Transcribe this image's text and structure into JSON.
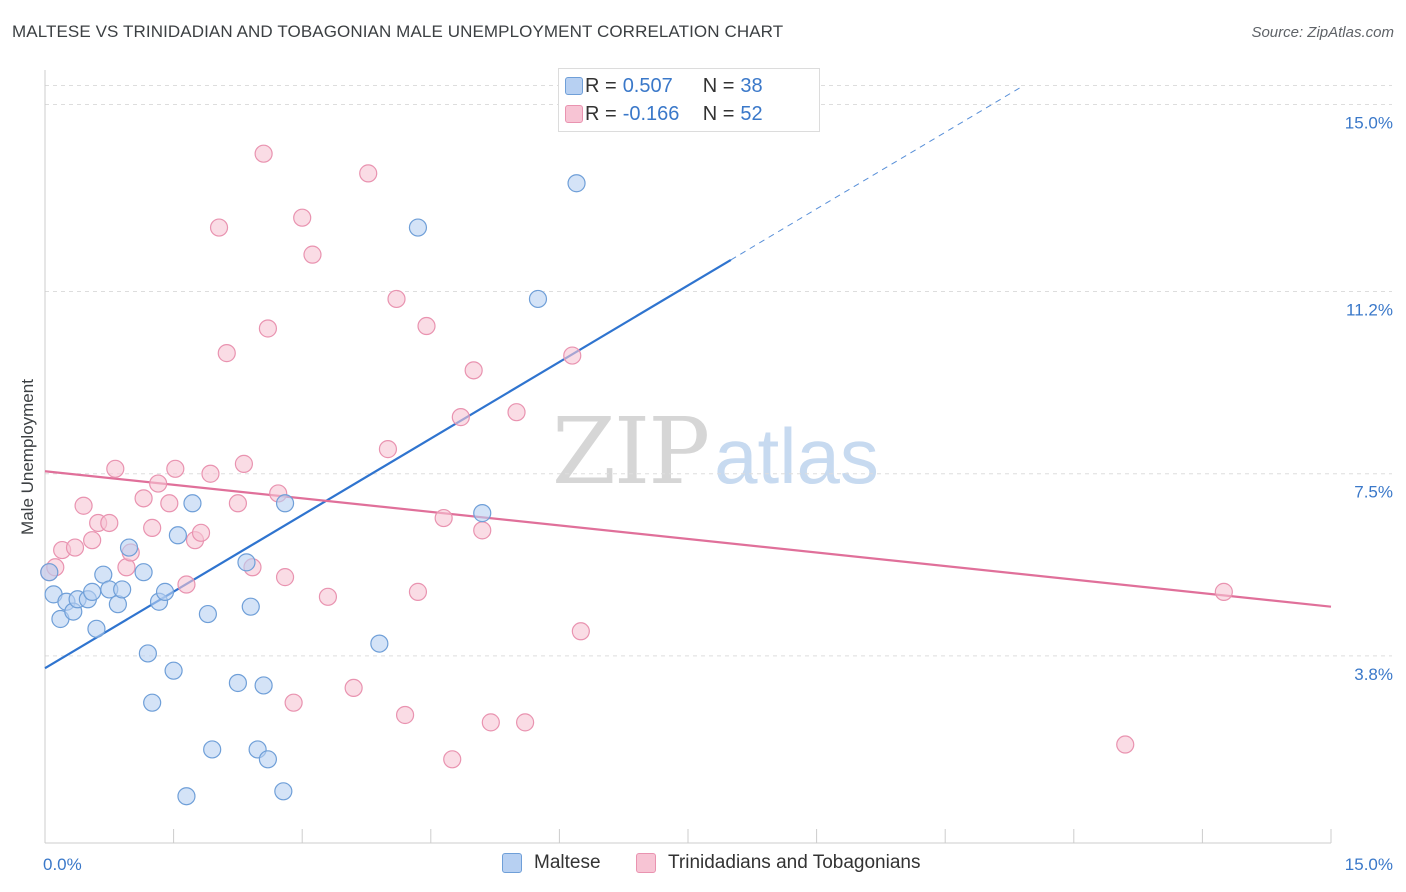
{
  "header": {
    "title": "MALTESE VS TRINIDADIAN AND TOBAGONIAN MALE UNEMPLOYMENT CORRELATION CHART",
    "source": "Source: ZipAtlas.com"
  },
  "watermark": {
    "zip": "ZIP",
    "atlas": "atlas"
  },
  "stats": {
    "maltese": {
      "r_label": "R =",
      "r_value": "0.507",
      "n_label": "N =",
      "n_value": "38"
    },
    "trinidadian": {
      "r_label": "R =",
      "r_value": "-0.166",
      "n_label": "N =",
      "n_value": "52"
    }
  },
  "legend": {
    "maltese": "Maltese",
    "trinidadian": "Trinidadians and Tobagonians"
  },
  "colors": {
    "maltese_fill": "#b7d0f2",
    "maltese_stroke": "#6f9fd8",
    "maltese_line": "#2f74cf",
    "trinidadian_fill": "#f7c4d4",
    "trinidadian_stroke": "#e993b0",
    "trinidadian_line": "#e0709a",
    "axis_label": "#3a78c9",
    "grid": "#dddddd"
  },
  "chart_data": {
    "type": "scatter",
    "title": "MALTESE VS TRINIDADIAN AND TOBAGONIAN MALE UNEMPLOYMENT CORRELATION CHART",
    "xlabel": "",
    "ylabel": "Male Unemployment",
    "xlim": [
      0,
      15
    ],
    "ylim": [
      0,
      15.7
    ],
    "x_tick_labels": [
      {
        "value": 0,
        "label": "0.0%"
      },
      {
        "value": 15,
        "label": "15.0%"
      }
    ],
    "y_tick_labels": [
      {
        "value": 3.8,
        "label": "3.8%"
      },
      {
        "value": 7.5,
        "label": "7.5%"
      },
      {
        "value": 11.2,
        "label": "11.2%"
      },
      {
        "value": 15.0,
        "label": "15.0%"
      }
    ],
    "grid": true,
    "legend_position": "bottom",
    "series": [
      {
        "name": "Maltese",
        "trendline": {
          "x0": 0,
          "y0": 3.55,
          "x1": 15,
          "y1": 19.1,
          "solid_until_x": 8.0
        },
        "points": [
          [
            0.05,
            5.5
          ],
          [
            0.1,
            5.05
          ],
          [
            0.18,
            4.55
          ],
          [
            0.25,
            4.9
          ],
          [
            0.33,
            4.7
          ],
          [
            0.38,
            4.95
          ],
          [
            0.5,
            4.95
          ],
          [
            0.55,
            5.1
          ],
          [
            0.6,
            4.35
          ],
          [
            0.68,
            5.45
          ],
          [
            0.75,
            5.15
          ],
          [
            0.85,
            4.85
          ],
          [
            0.9,
            5.15
          ],
          [
            0.98,
            6.0
          ],
          [
            1.15,
            5.5
          ],
          [
            1.2,
            3.85
          ],
          [
            1.25,
            2.85
          ],
          [
            1.33,
            4.9
          ],
          [
            1.4,
            5.1
          ],
          [
            1.5,
            3.5
          ],
          [
            1.55,
            6.25
          ],
          [
            1.65,
            0.95
          ],
          [
            1.72,
            6.9
          ],
          [
            1.9,
            4.65
          ],
          [
            1.95,
            1.9
          ],
          [
            2.25,
            3.25
          ],
          [
            2.35,
            5.7
          ],
          [
            2.4,
            4.8
          ],
          [
            2.48,
            1.9
          ],
          [
            2.55,
            3.2
          ],
          [
            2.6,
            1.7
          ],
          [
            2.78,
            1.05
          ],
          [
            2.8,
            6.9
          ],
          [
            3.9,
            4.05
          ],
          [
            4.35,
            12.5
          ],
          [
            5.1,
            6.7
          ],
          [
            5.75,
            11.05
          ],
          [
            6.2,
            13.4
          ]
        ]
      },
      {
        "name": "Trinidadians and Tobagonians",
        "trendline": {
          "x0": 0,
          "y0": 7.55,
          "x1": 15,
          "y1": 4.8
        },
        "points": [
          [
            0.05,
            5.5
          ],
          [
            0.12,
            5.6
          ],
          [
            0.2,
            5.95
          ],
          [
            0.35,
            6.0
          ],
          [
            0.45,
            6.85
          ],
          [
            0.55,
            6.15
          ],
          [
            0.62,
            6.5
          ],
          [
            0.75,
            6.5
          ],
          [
            0.82,
            7.6
          ],
          [
            0.95,
            5.6
          ],
          [
            1.0,
            5.9
          ],
          [
            1.15,
            7.0
          ],
          [
            1.25,
            6.4
          ],
          [
            1.32,
            7.3
          ],
          [
            1.45,
            6.9
          ],
          [
            1.52,
            7.6
          ],
          [
            1.65,
            5.25
          ],
          [
            1.75,
            6.15
          ],
          [
            1.82,
            6.3
          ],
          [
            1.93,
            7.5
          ],
          [
            2.03,
            12.5
          ],
          [
            2.12,
            9.95
          ],
          [
            2.25,
            6.9
          ],
          [
            2.32,
            7.7
          ],
          [
            2.42,
            5.6
          ],
          [
            2.55,
            14.0
          ],
          [
            2.6,
            10.45
          ],
          [
            2.72,
            7.1
          ],
          [
            2.8,
            5.4
          ],
          [
            2.9,
            2.85
          ],
          [
            3.0,
            12.7
          ],
          [
            3.12,
            11.95
          ],
          [
            3.3,
            5.0
          ],
          [
            3.6,
            3.15
          ],
          [
            3.77,
            13.6
          ],
          [
            4.0,
            8.0
          ],
          [
            4.1,
            11.05
          ],
          [
            4.2,
            2.6
          ],
          [
            4.35,
            5.1
          ],
          [
            4.45,
            10.5
          ],
          [
            4.65,
            6.6
          ],
          [
            4.75,
            1.7
          ],
          [
            4.85,
            8.65
          ],
          [
            5.0,
            9.6
          ],
          [
            5.1,
            6.35
          ],
          [
            5.2,
            2.45
          ],
          [
            5.5,
            8.75
          ],
          [
            5.6,
            2.45
          ],
          [
            6.15,
            9.9
          ],
          [
            6.25,
            4.3
          ],
          [
            12.6,
            2.0
          ],
          [
            13.75,
            5.1
          ]
        ]
      }
    ]
  }
}
